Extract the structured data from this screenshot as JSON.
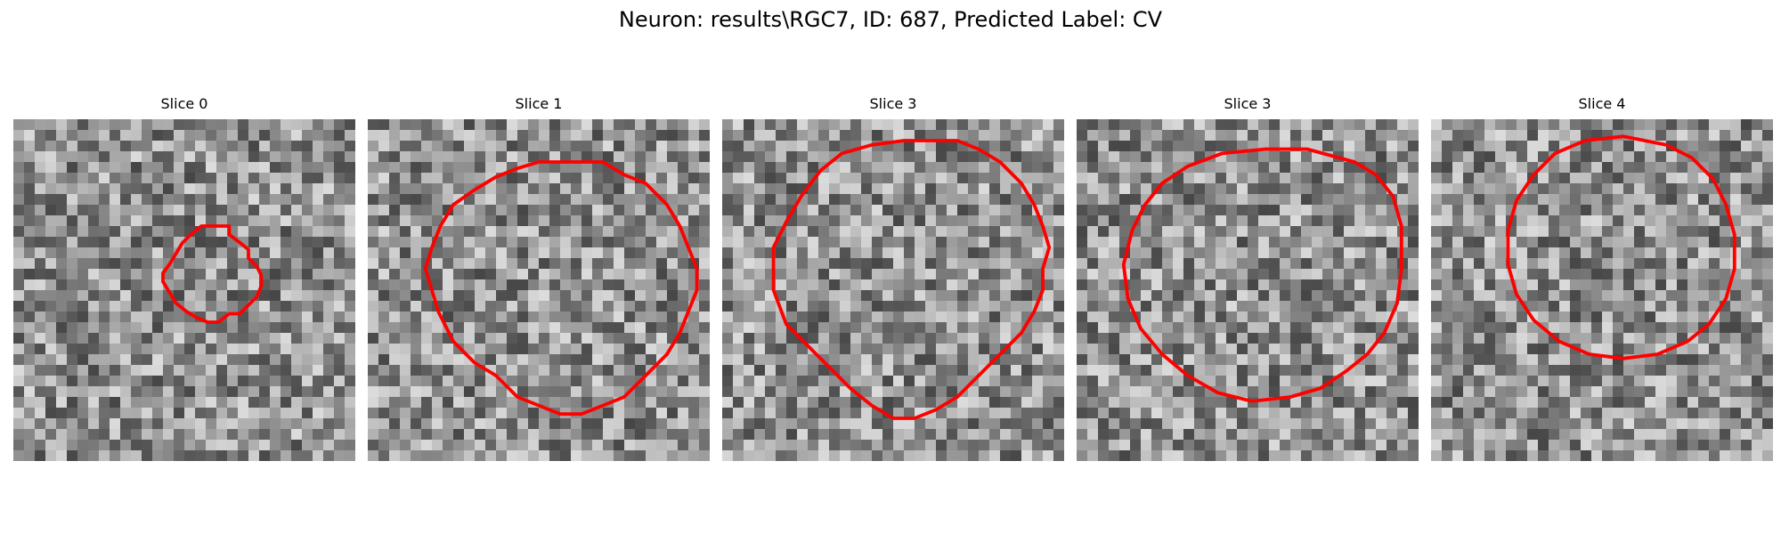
{
  "figure": {
    "title": "Neuron: results\\RGC7, ID: 687, Predicted Label: CV"
  },
  "colors": {
    "contour": "#ff0000",
    "background": "#ffffff"
  },
  "panels": [
    {
      "title": "Slice 0",
      "seed": 11,
      "contour": [
        [
          9.6,
          5.0
        ],
        [
          10.1,
          5.0
        ],
        [
          10.1,
          5.4
        ],
        [
          10.5,
          5.7
        ],
        [
          11.0,
          6.1
        ],
        [
          11.0,
          6.5
        ],
        [
          11.4,
          6.9
        ],
        [
          11.6,
          7.3
        ],
        [
          11.6,
          7.8
        ],
        [
          11.4,
          8.3
        ],
        [
          11.0,
          8.7
        ],
        [
          10.6,
          9.1
        ],
        [
          10.1,
          9.1
        ],
        [
          9.6,
          9.5
        ],
        [
          9.1,
          9.5
        ],
        [
          8.6,
          9.3
        ],
        [
          8.1,
          9.0
        ],
        [
          7.6,
          8.6
        ],
        [
          7.3,
          8.1
        ],
        [
          7.0,
          7.6
        ],
        [
          7.0,
          7.2
        ],
        [
          7.3,
          6.8
        ],
        [
          7.6,
          6.3
        ],
        [
          7.9,
          5.8
        ],
        [
          8.3,
          5.4
        ],
        [
          8.8,
          5.0
        ],
        [
          9.6,
          5.0
        ]
      ]
    },
    {
      "title": "Slice 1",
      "seed": 23,
      "contour": [
        [
          10.0,
          2.0
        ],
        [
          11.0,
          2.0
        ],
        [
          12.0,
          2.6
        ],
        [
          13.0,
          3.0
        ],
        [
          14.0,
          4.0
        ],
        [
          14.6,
          5.0
        ],
        [
          15.0,
          6.0
        ],
        [
          15.4,
          7.0
        ],
        [
          15.4,
          8.0
        ],
        [
          15.0,
          9.0
        ],
        [
          14.6,
          10.0
        ],
        [
          14.0,
          11.0
        ],
        [
          13.0,
          12.0
        ],
        [
          12.0,
          13.0
        ],
        [
          11.0,
          13.4
        ],
        [
          10.0,
          13.8
        ],
        [
          9.0,
          13.8
        ],
        [
          8.0,
          13.4
        ],
        [
          7.0,
          13.0
        ],
        [
          6.0,
          12.0
        ],
        [
          5.0,
          11.4
        ],
        [
          4.0,
          10.4
        ],
        [
          3.3,
          9.0
        ],
        [
          3.0,
          8.0
        ],
        [
          2.7,
          7.0
        ],
        [
          3.0,
          6.0
        ],
        [
          3.4,
          5.0
        ],
        [
          4.0,
          4.0
        ],
        [
          5.0,
          3.3
        ],
        [
          6.0,
          2.7
        ],
        [
          7.0,
          2.3
        ],
        [
          8.0,
          2.0
        ],
        [
          9.0,
          2.0
        ],
        [
          10.0,
          2.0
        ]
      ]
    },
    {
      "title": "Slice 3",
      "seed": 37,
      "contour": [
        [
          10.0,
          1.0
        ],
        [
          11.0,
          1.0
        ],
        [
          12.0,
          1.4
        ],
        [
          13.0,
          2.0
        ],
        [
          14.0,
          3.0
        ],
        [
          14.6,
          4.0
        ],
        [
          15.0,
          5.0
        ],
        [
          15.3,
          6.0
        ],
        [
          15.0,
          7.0
        ],
        [
          15.0,
          8.0
        ],
        [
          14.6,
          9.0
        ],
        [
          14.0,
          10.0
        ],
        [
          13.0,
          11.0
        ],
        [
          12.0,
          12.0
        ],
        [
          11.0,
          13.0
        ],
        [
          10.0,
          13.6
        ],
        [
          9.0,
          14.0
        ],
        [
          8.0,
          14.0
        ],
        [
          7.0,
          13.4
        ],
        [
          6.0,
          12.6
        ],
        [
          5.0,
          11.6
        ],
        [
          4.0,
          10.6
        ],
        [
          3.0,
          9.6
        ],
        [
          2.4,
          8.0
        ],
        [
          2.4,
          6.0
        ],
        [
          3.0,
          4.8
        ],
        [
          3.7,
          3.6
        ],
        [
          4.6,
          2.4
        ],
        [
          5.6,
          1.6
        ],
        [
          7.0,
          1.2
        ],
        [
          8.5,
          1.0
        ],
        [
          10.0,
          1.0
        ]
      ]
    },
    {
      "title": "Slice 3",
      "seed": 51,
      "contour": [
        [
          13.0,
          2.0
        ],
        [
          14.0,
          2.6
        ],
        [
          14.8,
          3.6
        ],
        [
          15.2,
          5.0
        ],
        [
          15.2,
          7.0
        ],
        [
          15.0,
          8.6
        ],
        [
          14.4,
          10.0
        ],
        [
          13.6,
          11.0
        ],
        [
          12.6,
          11.8
        ],
        [
          11.4,
          12.6
        ],
        [
          10.0,
          13.0
        ],
        [
          8.2,
          13.2
        ],
        [
          6.6,
          12.8
        ],
        [
          5.2,
          12.0
        ],
        [
          4.0,
          11.0
        ],
        [
          3.0,
          9.8
        ],
        [
          2.4,
          8.4
        ],
        [
          2.2,
          6.8
        ],
        [
          2.6,
          5.2
        ],
        [
          3.2,
          4.0
        ],
        [
          4.0,
          3.0
        ],
        [
          5.2,
          2.2
        ],
        [
          6.8,
          1.6
        ],
        [
          8.8,
          1.4
        ],
        [
          10.8,
          1.4
        ],
        [
          13.0,
          2.0
        ]
      ]
    },
    {
      "title": "Slice 4",
      "seed": 67,
      "contour": [
        [
          11.0,
          1.2
        ],
        [
          12.2,
          1.8
        ],
        [
          13.2,
          2.8
        ],
        [
          13.8,
          4.0
        ],
        [
          14.2,
          5.4
        ],
        [
          14.2,
          7.0
        ],
        [
          13.8,
          8.4
        ],
        [
          13.0,
          9.6
        ],
        [
          12.0,
          10.4
        ],
        [
          10.6,
          11.0
        ],
        [
          9.0,
          11.2
        ],
        [
          7.4,
          11.0
        ],
        [
          6.0,
          10.4
        ],
        [
          4.8,
          9.4
        ],
        [
          4.0,
          8.2
        ],
        [
          3.6,
          6.8
        ],
        [
          3.6,
          5.2
        ],
        [
          4.0,
          3.8
        ],
        [
          4.8,
          2.6
        ],
        [
          5.8,
          1.6
        ],
        [
          7.2,
          1.0
        ],
        [
          9.0,
          0.8
        ],
        [
          11.0,
          1.2
        ]
      ]
    }
  ]
}
